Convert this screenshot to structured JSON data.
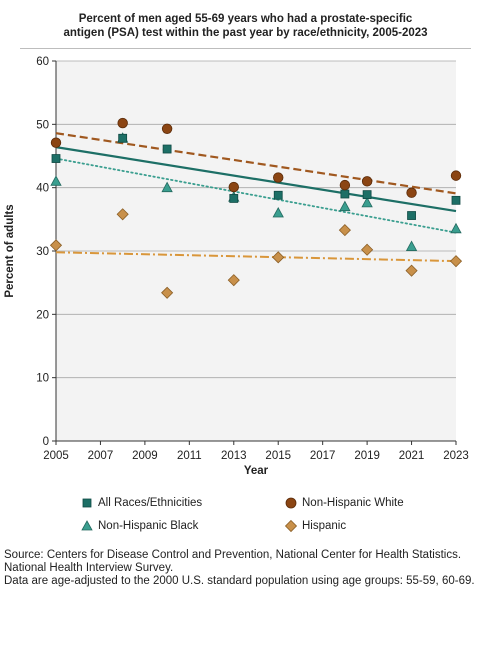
{
  "chart_data": {
    "type": "scatter",
    "title": "Percent of men aged 55-69 years who had a prostate-specific antigen (PSA) test within the past year by race/ethnicity, 2005-2023",
    "title_lines": [
      "Percent of men aged 55-69 years who had a prostate-specific",
      "antigen (PSA) test within the past year by race/ethnicity, 2005-2023"
    ],
    "xlabel": "Year",
    "ylabel": "Percent of adults",
    "xlim": [
      2005,
      2023
    ],
    "ylim": [
      0,
      60
    ],
    "xticks": [
      "2005",
      "2007",
      "2009",
      "2011",
      "2013",
      "2015",
      "2017",
      "2019",
      "2021",
      "2023"
    ],
    "yticks": [
      "0",
      "10",
      "20",
      "30",
      "40",
      "50",
      "60"
    ],
    "grid": "horizontal",
    "legend_position": "bottom",
    "series": [
      {
        "name": "All Races/Ethnicities",
        "marker": "square",
        "color": "#1d6f66",
        "line_style": "solid",
        "points": [
          [
            2005,
            44.6
          ],
          [
            2008,
            47.8
          ],
          [
            2010,
            46.1
          ],
          [
            2013,
            38.3
          ],
          [
            2015,
            38.8
          ],
          [
            2018,
            39.0
          ],
          [
            2019,
            38.9
          ],
          [
            2021,
            35.6
          ],
          [
            2023,
            38.0
          ]
        ],
        "trend": [
          [
            2005,
            46.4
          ],
          [
            2023,
            36.3
          ]
        ]
      },
      {
        "name": "Non-Hispanic White",
        "marker": "circle",
        "color": "#8b4513",
        "line_style": "dashed",
        "points": [
          [
            2005,
            47.1
          ],
          [
            2008,
            50.2
          ],
          [
            2010,
            49.3
          ],
          [
            2013,
            40.1
          ],
          [
            2015,
            41.6
          ],
          [
            2018,
            40.4
          ],
          [
            2019,
            41.0
          ],
          [
            2021,
            39.2
          ],
          [
            2023,
            41.9
          ]
        ],
        "trend": [
          [
            2005,
            48.6
          ],
          [
            2023,
            39.1
          ]
        ]
      },
      {
        "name": "Non-Hispanic Black",
        "marker": "triangle",
        "color": "#3a9e8f",
        "line_style": "dotted",
        "points": [
          [
            2005,
            41.0
          ],
          [
            2008,
            47.8
          ],
          [
            2010,
            40.0
          ],
          [
            2013,
            38.5
          ],
          [
            2015,
            36.0
          ],
          [
            2018,
            37.0
          ],
          [
            2019,
            37.6
          ],
          [
            2021,
            30.7
          ],
          [
            2023,
            33.5
          ]
        ],
        "trend": [
          [
            2005,
            44.6
          ],
          [
            2023,
            32.9
          ]
        ]
      },
      {
        "name": "Hispanic",
        "marker": "diamond",
        "color": "#c8904a",
        "line_style": "dash-dot",
        "points": [
          [
            2005,
            30.9
          ],
          [
            2008,
            35.8
          ],
          [
            2010,
            23.4
          ],
          [
            2013,
            25.4
          ],
          [
            2015,
            29.0
          ],
          [
            2018,
            33.3
          ],
          [
            2019,
            30.2
          ],
          [
            2021,
            26.9
          ],
          [
            2023,
            28.4
          ]
        ],
        "trend": [
          [
            2005,
            29.8
          ],
          [
            2023,
            28.4
          ]
        ]
      }
    ]
  },
  "colors": {
    "plot_background": "#f3f3f3",
    "gridline": "#a8a8a8",
    "all_races": "#1d6f66",
    "nh_white": "#8b4513",
    "nh_black": "#3a9e8f",
    "hispanic": "#c8904a",
    "dashed_white_line": "#a0581f",
    "hispanic_line": "#d9963a"
  },
  "source_lines": [
    "Source: Centers for Disease Control and Prevention, National Center for Health Statistics. National Health Interview Survey.",
    "Data are age-adjusted to the 2000 U.S. standard population using age groups: 55-59, 60-69."
  ]
}
